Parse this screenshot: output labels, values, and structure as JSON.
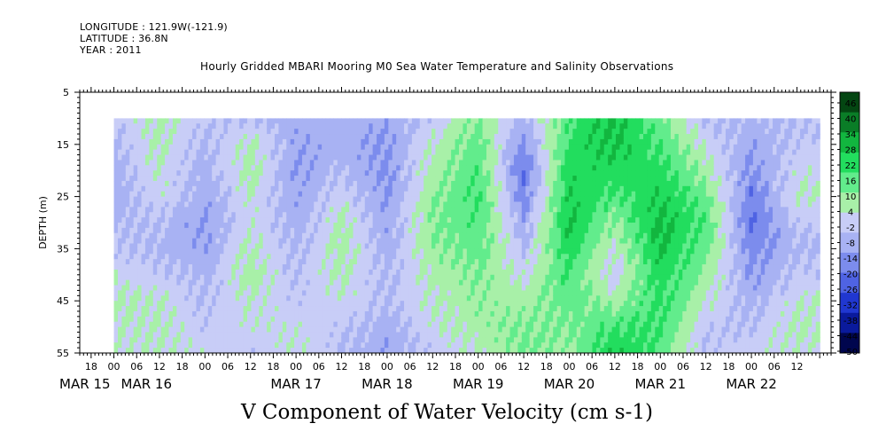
{
  "header": {
    "longitude": "LONGITUDE : 121.9W(-121.9)",
    "latitude": "LATITUDE : 36.8N",
    "year": "YEAR : 2011"
  },
  "chart_data": {
    "type": "heatmap",
    "title": "Hourly Gridded MBARI Mooring M0 Sea Water Temperature and Salinity Observations",
    "xlabel": "V Component of Water Velocity (cm s-1)",
    "ylabel": "DEPTH (m)",
    "y_axis": {
      "range": [
        5,
        55
      ],
      "inverted": true,
      "ticks": [
        5,
        15,
        25,
        35,
        45,
        55
      ],
      "data_depth_range": [
        10,
        55
      ]
    },
    "x_axis": {
      "range_days": [
        "MAR 14 15:00",
        "MAR 22 21:00"
      ],
      "hour_ticks": [
        "18",
        "00",
        "06",
        "12",
        "18",
        "00",
        "06",
        "12",
        "18",
        "00",
        "06",
        "12",
        "18",
        "00",
        "06",
        "12",
        "18",
        "00",
        "06",
        "12",
        "18",
        "00",
        "06",
        "12",
        "18",
        "00",
        "06",
        "12",
        "18",
        "00",
        "06",
        "12"
      ],
      "date_labels": [
        "MAR 15",
        "MAR 16",
        "MAR 17",
        "MAR 18",
        "MAR 19",
        "MAR 20",
        "MAR 21",
        "MAR 22"
      ],
      "data_time_range": [
        "MAR 15 00:00",
        "MAR 22 18:00"
      ]
    },
    "colorbar": {
      "levels": [
        46,
        40,
        34,
        28,
        22,
        16,
        10,
        4,
        -2,
        -8,
        -14,
        -20,
        -26,
        -32,
        -38,
        -44,
        -50
      ],
      "min": -50,
      "max": 50,
      "colors": [
        "#00064e",
        "#0a1a9c",
        "#2037d0",
        "#4f63e3",
        "#7c8ced",
        "#a8b2f3",
        "#c8cdf7",
        "#a8f0a8",
        "#62ec8c",
        "#22dd5e",
        "#12b63f",
        "#0a7d27",
        "#044612"
      ]
    },
    "time_series_description": "V velocity (cm/s) pattern by day: Mar15 weak negative/positive mix, Mar16-18 mostly -10 to 0 with some positive bands, Mar19 strong positive (to ~20) with negative core near 20m, Mar20-21 strong positive bands up to ~40, Mar22 negative near 30-40m",
    "cells": [
      {
        "day": 15.0,
        "v": [
          -4,
          -6,
          -8,
          -10,
          -6,
          -2,
          2,
          6,
          4,
          2
        ]
      },
      {
        "day": 15.5,
        "v": [
          8,
          6,
          4,
          2,
          -4,
          -6,
          -2,
          4,
          6,
          4
        ]
      },
      {
        "day": 16.0,
        "v": [
          -2,
          -6,
          -8,
          -10,
          -12,
          -10,
          -6,
          -4,
          -2,
          2
        ]
      },
      {
        "day": 16.5,
        "v": [
          -4,
          6,
          8,
          4,
          2,
          6,
          8,
          4,
          2,
          -2
        ]
      },
      {
        "day": 17.0,
        "v": [
          -8,
          -10,
          -12,
          -10,
          -8,
          -6,
          -4,
          -2,
          2,
          4
        ]
      },
      {
        "day": 17.5,
        "v": [
          -6,
          -8,
          -4,
          2,
          6,
          8,
          6,
          2,
          -2,
          -4
        ]
      },
      {
        "day": 18.0,
        "v": [
          -10,
          -12,
          -14,
          -12,
          -10,
          -8,
          -6,
          -4,
          -8,
          -10
        ]
      },
      {
        "day": 18.5,
        "v": [
          -2,
          4,
          8,
          10,
          12,
          10,
          6,
          4,
          2,
          -2
        ]
      },
      {
        "day": 19.0,
        "v": [
          12,
          16,
          18,
          20,
          18,
          16,
          12,
          10,
          8,
          4
        ]
      },
      {
        "day": 19.5,
        "v": [
          -6,
          -14,
          -20,
          -16,
          -10,
          -4,
          2,
          8,
          12,
          14
        ]
      },
      {
        "day": 20.0,
        "v": [
          18,
          22,
          24,
          26,
          28,
          24,
          20,
          16,
          12,
          8
        ]
      },
      {
        "day": 20.5,
        "v": [
          30,
          28,
          24,
          18,
          10,
          4,
          -2,
          8,
          20,
          28
        ]
      },
      {
        "day": 21.0,
        "v": [
          14,
          18,
          22,
          26,
          30,
          28,
          24,
          22,
          20,
          18
        ]
      },
      {
        "day": 21.5,
        "v": [
          -4,
          2,
          8,
          14,
          18,
          14,
          10,
          4,
          -2,
          -4
        ]
      },
      {
        "day": 22.0,
        "v": [
          -6,
          -10,
          -14,
          -18,
          -20,
          -16,
          -12,
          -8,
          -4,
          2
        ]
      },
      {
        "day": 22.5,
        "v": [
          -4,
          -2,
          2,
          4,
          -2,
          -6,
          -2,
          4,
          6,
          2
        ]
      }
    ]
  }
}
